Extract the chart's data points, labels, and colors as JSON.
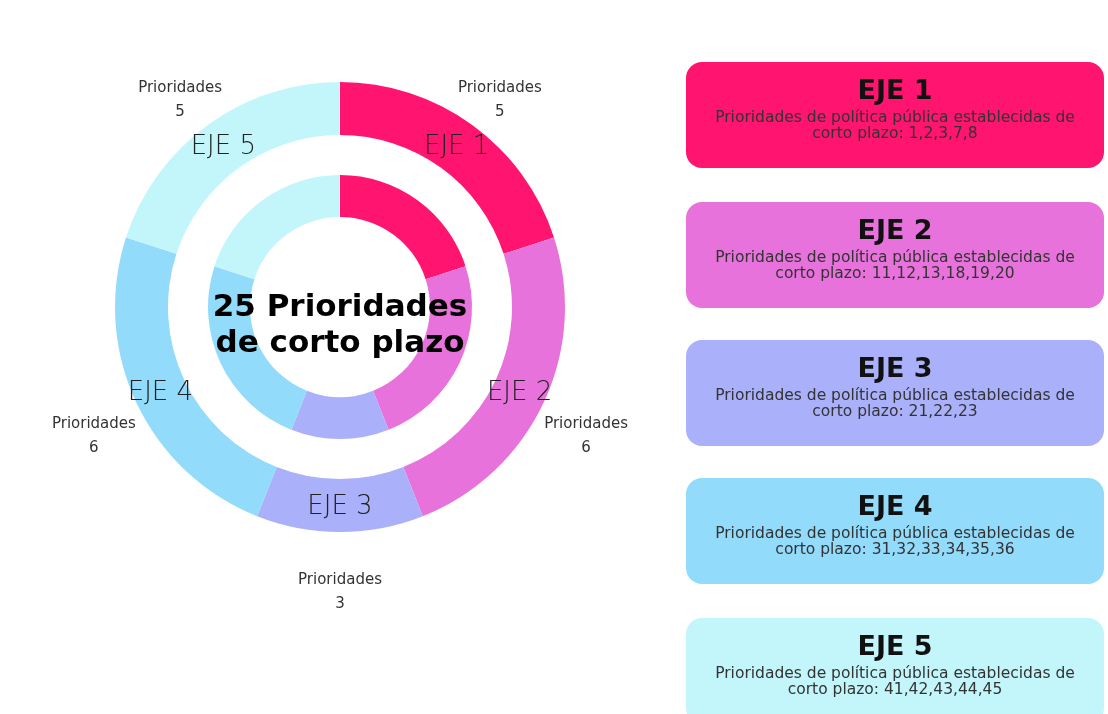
{
  "chart_data": [
    {
      "type": "donut",
      "title": "25 Prioridades\nde corto plazo",
      "categories": [
        "EJE 1",
        "EJE 2",
        "EJE 3",
        "EJE 4",
        "EJE 5"
      ],
      "colors": [
        "#ff1470",
        "#e872dc",
        "#aab0fa",
        "#93dbfb",
        "#c2f6fb"
      ],
      "series": [
        {
          "values": [
            5,
            6,
            3,
            6,
            5
          ]
        },
        {
          "values": [
            5,
            6,
            3,
            6,
            5
          ]
        }
      ],
      "value_labels": [
        "Prioridades\n5",
        "Prioridades\n6",
        "Prioridades\n3",
        "Prioridades\n6",
        "Prioridades\n5"
      ]
    },
    {
      "type": "other",
      "categories": [
        "EJE 1",
        "EJE 2",
        "EJE 3",
        "EJE 4",
        "EJE 5"
      ],
      "colors": [
        "#ff1470",
        "#e872dc",
        "#aab0fa",
        "#93dbfb",
        "#c2f6fb"
      ],
      "annotations": [
        "Prioridades de política pública establecidas de corto plazo: 1,2,3,7,8",
        "Prioridades de política pública establecidas de corto plazo: 11,12,13,18,19,20",
        "Prioridades de política pública establecidas de corto plazo: 21,22,23",
        "Prioridades de política pública establecidas de corto plazo: 31,32,33,34,35,36",
        "Prioridades de política pública establecidas de corto plazo: 41,42,43,44,45"
      ]
    }
  ]
}
